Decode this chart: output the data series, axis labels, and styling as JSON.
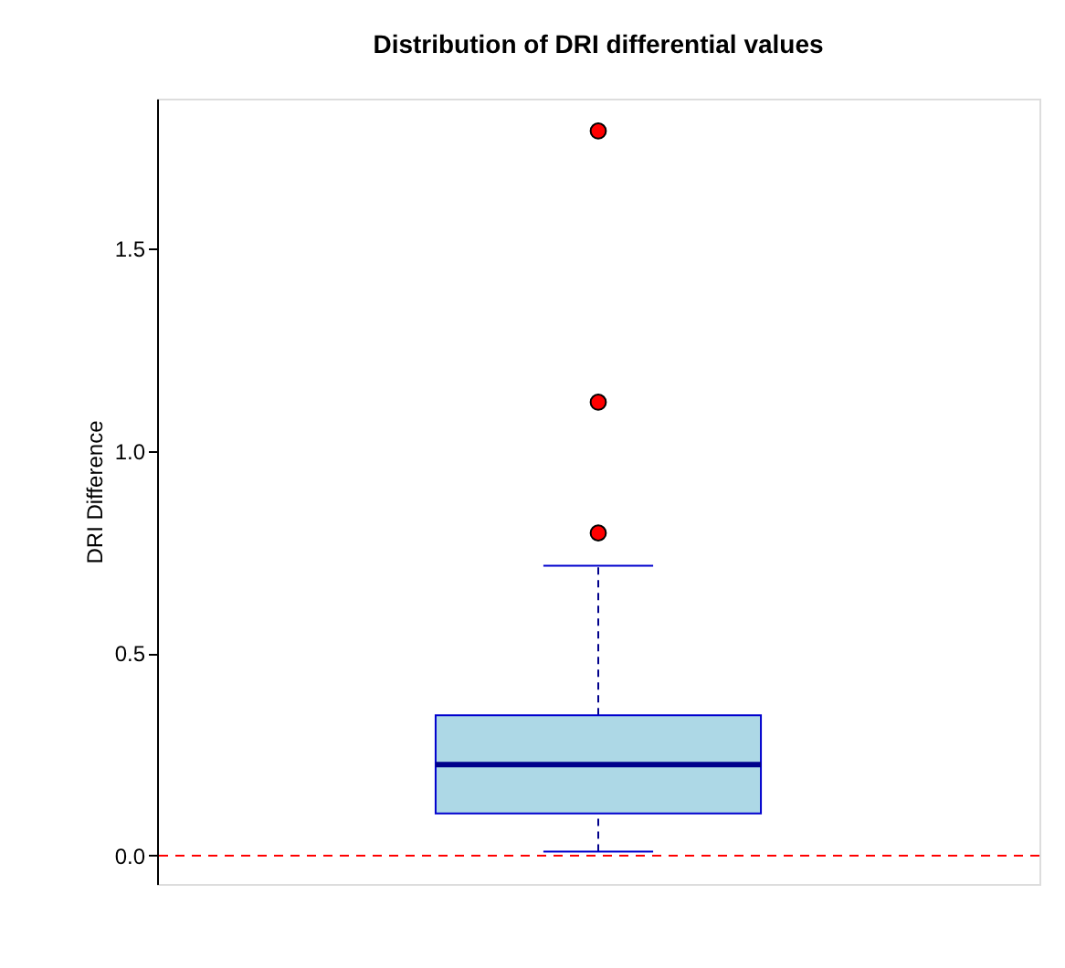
{
  "chart_data": {
    "type": "box",
    "title": "Distribution of DRI differential values",
    "ylabel": "DRI Difference",
    "categories": [
      null
    ],
    "series": [
      {
        "color": "#add8e6",
        "boxes": [
          {
            "low": 0.01,
            "q1": 0.104,
            "median": 0.225,
            "q3": 0.347,
            "high": 0.716,
            "outliers": [
              0.797,
              1.12,
              1.79
            ]
          }
        ]
      }
    ],
    "ylim": [
      -0.07,
      1.87
    ],
    "yticks": [
      {
        "value": 0,
        "label": "0.0"
      },
      0.5,
      {
        "value": 1,
        "label": "1.0"
      },
      1.5
    ],
    "ref_lines": [
      {
        "axis": "y",
        "value": 0,
        "color": "#ff0000",
        "line_style": "dashed"
      }
    ],
    "grid": false,
    "legend": false
  }
}
